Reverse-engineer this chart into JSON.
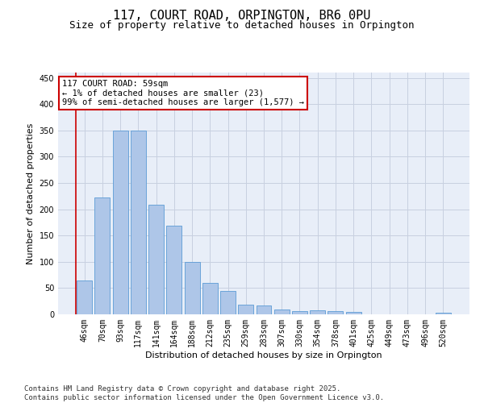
{
  "title": "117, COURT ROAD, ORPINGTON, BR6 0PU",
  "subtitle": "Size of property relative to detached houses in Orpington",
  "xlabel": "Distribution of detached houses by size in Orpington",
  "ylabel": "Number of detached properties",
  "categories": [
    "46sqm",
    "70sqm",
    "93sqm",
    "117sqm",
    "141sqm",
    "164sqm",
    "188sqm",
    "212sqm",
    "235sqm",
    "259sqm",
    "283sqm",
    "307sqm",
    "330sqm",
    "354sqm",
    "378sqm",
    "401sqm",
    "425sqm",
    "449sqm",
    "473sqm",
    "496sqm",
    "520sqm"
  ],
  "values": [
    65,
    222,
    350,
    350,
    209,
    168,
    99,
    60,
    44,
    18,
    17,
    9,
    6,
    7,
    6,
    5,
    0,
    0,
    0,
    0,
    3
  ],
  "bar_color": "#aec6e8",
  "bar_edge_color": "#5b9bd5",
  "highlight_line_color": "#cc0000",
  "annotation_line1": "117 COURT ROAD: 59sqm",
  "annotation_line2": "← 1% of detached houses are smaller (23)",
  "annotation_line3": "99% of semi-detached houses are larger (1,577) →",
  "annotation_box_color": "#ffffff",
  "annotation_box_edge_color": "#cc0000",
  "ylim": [
    0,
    460
  ],
  "yticks": [
    0,
    50,
    100,
    150,
    200,
    250,
    300,
    350,
    400,
    450
  ],
  "grid_color": "#c8d0e0",
  "background_color": "#e8eef8",
  "footer_text": "Contains HM Land Registry data © Crown copyright and database right 2025.\nContains public sector information licensed under the Open Government Licence v3.0.",
  "title_fontsize": 11,
  "subtitle_fontsize": 9,
  "axis_label_fontsize": 8,
  "tick_fontsize": 7,
  "annotation_fontsize": 7.5,
  "footer_fontsize": 6.5
}
